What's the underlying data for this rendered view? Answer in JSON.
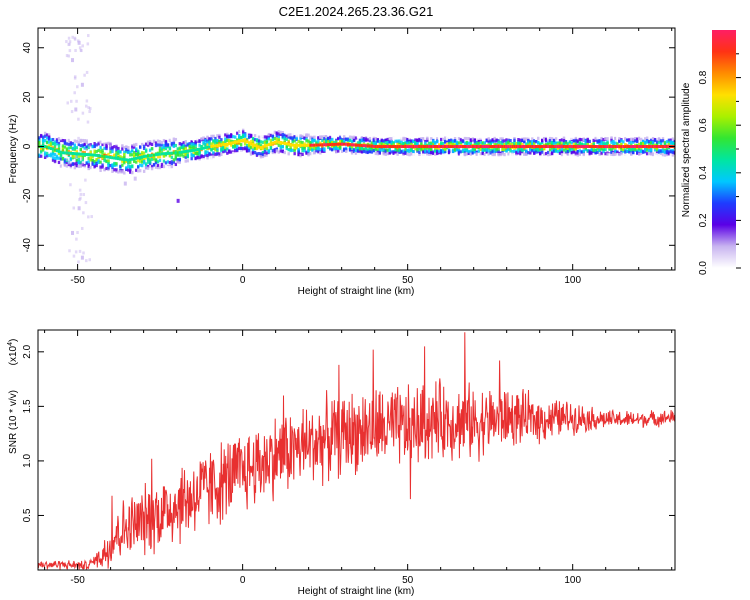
{
  "title": "C2E1.2024.265.23.36.G21",
  "chart_data": [
    {
      "type": "heatmap",
      "xlabel": "Height of straight line (km)",
      "ylabel": "Frequency (Hz)",
      "xlim": [
        -62,
        131
      ],
      "ylim": [
        -50,
        48
      ],
      "xticks": [
        -50,
        0,
        50,
        100
      ],
      "yticks": [
        -40,
        -20,
        0,
        20,
        40
      ],
      "ridge": [
        {
          "x": -60,
          "y": 0.0
        },
        {
          "x": -55,
          "y": -2.5
        },
        {
          "x": -50,
          "y": -3.0
        },
        {
          "x": -45,
          "y": -3.5
        },
        {
          "x": -40,
          "y": -4.5
        },
        {
          "x": -35,
          "y": -5.5
        },
        {
          "x": -30,
          "y": -4.0
        },
        {
          "x": -25,
          "y": -3.0
        },
        {
          "x": -20,
          "y": -2.5
        },
        {
          "x": -15,
          "y": -1.5
        },
        {
          "x": -10,
          "y": 0.0
        },
        {
          "x": -5,
          "y": 1.0
        },
        {
          "x": 0,
          "y": 2.5
        },
        {
          "x": 5,
          "y": -0.5
        },
        {
          "x": 10,
          "y": 2.0
        },
        {
          "x": 15,
          "y": 0.5
        },
        {
          "x": 20,
          "y": 0.5
        },
        {
          "x": 30,
          "y": 1.0
        },
        {
          "x": 40,
          "y": 0.0
        },
        {
          "x": 50,
          "y": 0.0
        },
        {
          "x": 60,
          "y": 0.0
        },
        {
          "x": 70,
          "y": 0.0
        },
        {
          "x": 80,
          "y": 0.0
        },
        {
          "x": 90,
          "y": 0.0
        },
        {
          "x": 100,
          "y": 0.0
        },
        {
          "x": 110,
          "y": 0.0
        },
        {
          "x": 120,
          "y": 0.0
        },
        {
          "x": 131,
          "y": 0.0
        }
      ],
      "scatter_outliers": [
        {
          "x": -50,
          "y": 42
        },
        {
          "x": -52,
          "y": 35
        },
        {
          "x": -49,
          "y": 25
        },
        {
          "x": -51,
          "y": 15
        },
        {
          "x": -50,
          "y": -25
        },
        {
          "x": -52,
          "y": -35
        },
        {
          "x": -49,
          "y": -45
        },
        {
          "x": -20,
          "y": -22
        },
        {
          "x": -33,
          "y": -13
        },
        {
          "x": -36,
          "y": -15
        }
      ],
      "colorbar": {
        "label": "Normalized spectral amplitude",
        "range": [
          0.0,
          1.0
        ],
        "ticks": [
          0.0,
          0.2,
          0.4,
          0.6,
          0.8
        ],
        "tick_labels": [
          "0.0",
          "0.2",
          "0.4",
          "0.6",
          "0.8"
        ],
        "colors": [
          "#ffffff",
          "#c8b4f0",
          "#5a00e6",
          "#1e3cff",
          "#00c8ff",
          "#00e6a0",
          "#32e632",
          "#aaf000",
          "#ffe000",
          "#ff8c00",
          "#ff3214",
          "#ff1e64"
        ]
      }
    },
    {
      "type": "line",
      "xlabel": "Height of straight line (km)",
      "ylabel": "SNR (10 * v/v)",
      "y_multiplier": "(x10",
      "y_multiplier_exp": "4",
      "y_multiplier_close": ")",
      "xlim": [
        -62,
        131
      ],
      "ylim": [
        0,
        2.2
      ],
      "xticks": [
        -50,
        0,
        50,
        100
      ],
      "yticks": [
        0.5,
        1.0,
        1.5,
        2.0
      ],
      "ytick_labels": [
        "0.5",
        "1.0",
        "1.5",
        "2.0"
      ],
      "color": "#e83030",
      "envelope": [
        {
          "x": -62,
          "y": 0.05
        },
        {
          "x": -55,
          "y": 0.05
        },
        {
          "x": -47,
          "y": 0.04
        },
        {
          "x": -42,
          "y": 0.15
        },
        {
          "x": -38,
          "y": 0.35
        },
        {
          "x": -30,
          "y": 0.45
        },
        {
          "x": -20,
          "y": 0.6
        },
        {
          "x": -10,
          "y": 0.75
        },
        {
          "x": 0,
          "y": 0.9
        },
        {
          "x": 10,
          "y": 1.05
        },
        {
          "x": 20,
          "y": 1.15
        },
        {
          "x": 30,
          "y": 1.25
        },
        {
          "x": 40,
          "y": 1.3
        },
        {
          "x": 50,
          "y": 1.3
        },
        {
          "x": 60,
          "y": 1.38
        },
        {
          "x": 70,
          "y": 1.35
        },
        {
          "x": 80,
          "y": 1.4
        },
        {
          "x": 90,
          "y": 1.38
        },
        {
          "x": 100,
          "y": 1.4
        },
        {
          "x": 110,
          "y": 1.38
        },
        {
          "x": 120,
          "y": 1.38
        },
        {
          "x": 131,
          "y": 1.4
        }
      ],
      "noise": [
        {
          "x": -62,
          "a": 0.05
        },
        {
          "x": -45,
          "a": 0.05
        },
        {
          "x": -40,
          "a": 0.3
        },
        {
          "x": -20,
          "a": 0.45
        },
        {
          "x": 0,
          "a": 0.45
        },
        {
          "x": 20,
          "a": 0.45
        },
        {
          "x": 50,
          "a": 0.45
        },
        {
          "x": 70,
          "a": 0.4
        },
        {
          "x": 90,
          "a": 0.25
        },
        {
          "x": 110,
          "a": 0.1
        },
        {
          "x": 131,
          "a": 0.08
        }
      ],
      "peaks": [
        {
          "x": 67.3,
          "y": 2.18
        },
        {
          "x": 55.2,
          "y": 2.05
        },
        {
          "x": 39.5,
          "y": 2.02
        },
        {
          "x": 29.1,
          "y": 1.88
        },
        {
          "x": 50.8,
          "y": 0.65
        },
        {
          "x": 12.4,
          "y": 1.6
        },
        {
          "x": -27.5,
          "y": 1.02
        },
        {
          "x": -39.6,
          "y": 0.68
        },
        {
          "x": 77.9,
          "y": 1.92
        }
      ]
    }
  ]
}
